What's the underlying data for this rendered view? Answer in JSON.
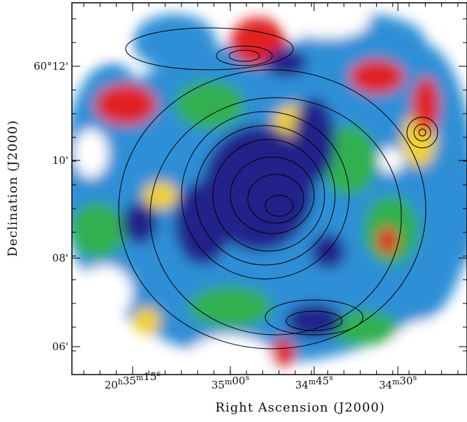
{
  "figure": {
    "x_axis": {
      "label": "Right Ascension (J2000)",
      "ticks": [
        "20h35m15s",
        "35m00s",
        "34m45s",
        "34m30s"
      ]
    },
    "y_axis": {
      "label": "Declination (J2000)",
      "ticks": [
        "60°12'",
        "10'",
        "08'",
        "06'"
      ]
    }
  }
}
